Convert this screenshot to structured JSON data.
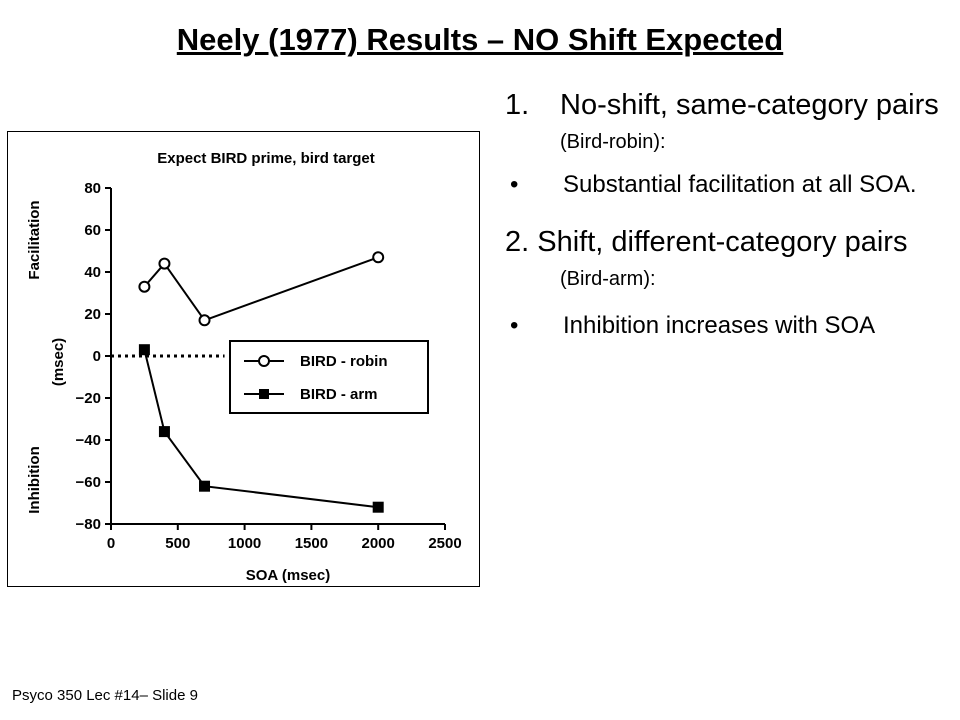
{
  "slide": {
    "title": "Neely (1977) Results – NO Shift Expected",
    "footer": "Psyco 350 Lec #14– Slide 9"
  },
  "bullets": {
    "item1_num": "1.",
    "item1_main": "No-shift, same-category pairs",
    "item1_note": "(Bird-robin):",
    "sub1_marker": "•",
    "sub1_text": "Substantial facilitation at all SOA.",
    "item2_main": "2. Shift, different-category pairs",
    "item2_note": "(Bird-arm):",
    "sub2_marker": "•",
    "sub2_text": "Inhibition increases with SOA"
  },
  "chart_data": {
    "type": "line",
    "title": "Expect BIRD prime, bird target",
    "xlabel": "SOA (msec)",
    "ylabel": "(msec)",
    "ylabel_upper": "Facilitation",
    "ylabel_lower": "Inhibition",
    "xlim": [
      0,
      2500
    ],
    "ylim": [
      -80,
      80
    ],
    "xticks": [
      0,
      500,
      1000,
      1500,
      2000,
      2500
    ],
    "yticks": [
      -80,
      -60,
      -40,
      -20,
      0,
      20,
      40,
      60,
      80
    ],
    "ytick_labels": [
      "−80",
      "−60",
      "−40",
      "−20",
      "0",
      "20",
      "40",
      "60",
      "80"
    ],
    "grid": false,
    "legend_position": "center-right",
    "reference_line": {
      "y": 0,
      "style": "dotted",
      "x_range": [
        0,
        850
      ]
    },
    "series": [
      {
        "name": "BIRD - robin",
        "marker": "open-circle",
        "x": [
          250,
          400,
          700,
          2000
        ],
        "y": [
          33,
          44,
          17,
          47
        ]
      },
      {
        "name": "BIRD - arm",
        "marker": "filled-square",
        "x": [
          250,
          400,
          700,
          2000
        ],
        "y": [
          3,
          -36,
          -62,
          -72
        ]
      }
    ],
    "colors": {
      "line": "#000000",
      "text": "#000000"
    }
  }
}
